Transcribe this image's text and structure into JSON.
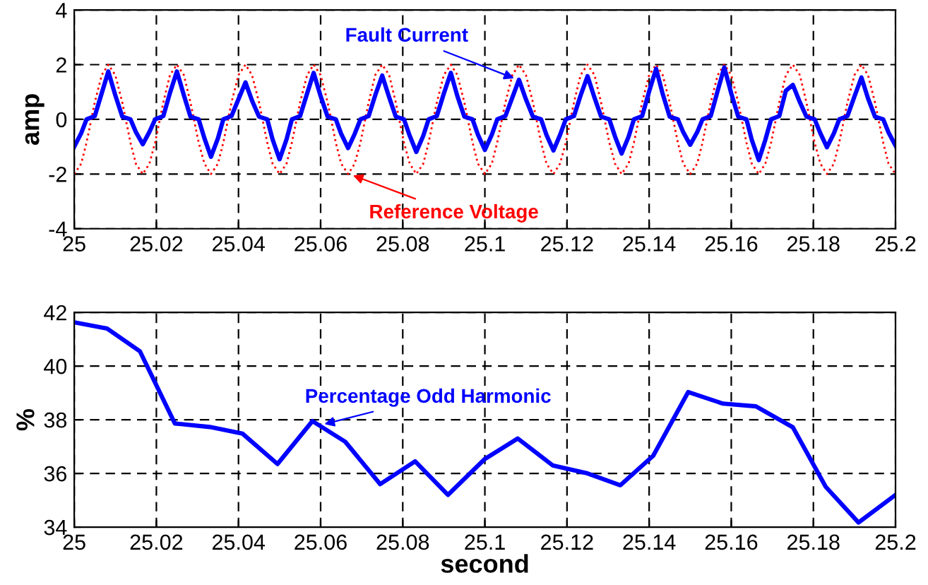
{
  "chart_data": [
    {
      "type": "line",
      "ylabel": "amp",
      "xlim": [
        25,
        25.2
      ],
      "ylim": [
        -4,
        4
      ],
      "xticks": [
        25,
        25.02,
        25.04,
        25.06,
        25.08,
        25.1,
        25.12,
        25.14,
        25.16,
        25.18,
        25.2
      ],
      "yticks": [
        -4,
        -2,
        0,
        2,
        4
      ],
      "grid": true,
      "line_style": "solid",
      "x": [
        25.0,
        25.0017,
        25.003,
        25.005,
        25.0067,
        25.0083,
        25.01,
        25.0117,
        25.0137,
        25.015,
        25.0167,
        25.0183,
        25.0197,
        25.0217,
        25.0233,
        25.025,
        25.0267,
        25.0283,
        25.0303,
        25.0317,
        25.0333,
        25.035,
        25.0363,
        25.0383,
        25.04,
        25.0417,
        25.0433,
        25.045,
        25.047,
        25.0483,
        25.05,
        25.0517,
        25.053,
        25.055,
        25.0567,
        25.0583,
        25.06,
        25.0617,
        25.0637,
        25.065,
        25.0667,
        25.0683,
        25.0697,
        25.0717,
        25.0733,
        25.075,
        25.0767,
        25.0783,
        25.0803,
        25.0817,
        25.0833,
        25.085,
        25.0863,
        25.0883,
        25.09,
        25.0917,
        25.0933,
        25.095,
        25.097,
        25.0983,
        25.1,
        25.1017,
        25.103,
        25.105,
        25.1067,
        25.1083,
        25.11,
        25.1117,
        25.1137,
        25.115,
        25.1167,
        25.1183,
        25.1197,
        25.1217,
        25.1233,
        25.125,
        25.1267,
        25.1283,
        25.1303,
        25.1317,
        25.1333,
        25.135,
        25.1363,
        25.1383,
        25.14,
        25.1417,
        25.1433,
        25.145,
        25.147,
        25.1483,
        25.15,
        25.1517,
        25.153,
        25.155,
        25.1567,
        25.1583,
        25.16,
        25.1617,
        25.1637,
        25.165,
        25.1667,
        25.1683,
        25.1697,
        25.1717,
        25.1733,
        25.175,
        25.1767,
        25.1783,
        25.1803,
        25.1817,
        25.1833,
        25.185,
        25.1863,
        25.1883,
        25.19,
        25.1917,
        25.1933,
        25.195,
        25.197,
        25.1983,
        25.2
      ],
      "series": [
        {
          "color": "#ff0000",
          "line_style": "dotted",
          "values": [
            -2,
            -1.62,
            -0.85,
            0.62,
            1.62,
            2,
            1.62,
            0.62,
            -0.85,
            -1.62,
            -2,
            -1.62,
            -0.85,
            0.62,
            1.62,
            2,
            1.62,
            0.62,
            -0.85,
            -1.62,
            -2,
            -1.62,
            -0.85,
            0.62,
            1.62,
            2,
            1.62,
            0.62,
            -0.85,
            -1.62,
            -2,
            -1.62,
            -0.85,
            0.62,
            1.62,
            2,
            1.62,
            0.62,
            -0.85,
            -1.62,
            -2,
            -1.62,
            -0.85,
            0.62,
            1.62,
            2,
            1.62,
            0.62,
            -0.85,
            -1.62,
            -2,
            -1.62,
            -0.85,
            0.62,
            1.62,
            2,
            1.62,
            0.62,
            -0.85,
            -1.62,
            -2,
            -1.62,
            -0.85,
            0.62,
            1.62,
            2,
            1.62,
            0.62,
            -0.85,
            -1.62,
            -2,
            -1.62,
            -0.85,
            0.62,
            1.62,
            2,
            1.62,
            0.62,
            -0.85,
            -1.62,
            -2,
            -1.62,
            -0.85,
            0.62,
            1.62,
            2,
            1.62,
            0.62,
            -0.85,
            -1.62,
            -2,
            -1.62,
            -0.85,
            0.62,
            1.62,
            2,
            1.62,
            0.62,
            -0.85,
            -1.62,
            -2,
            -1.62,
            -0.85,
            0.62,
            1.62,
            2,
            1.62,
            0.62,
            -0.85,
            -1.62,
            -2,
            -1.62,
            -0.85,
            0.62,
            1.62,
            2,
            1.62,
            0.62,
            -0.85,
            -1.62,
            -2
          ]
        },
        {
          "color": "#0000ff",
          "values": [
            -1.0,
            -0.5,
            0,
            0.12,
            0.96,
            1.75,
            0.88,
            0.1,
            0,
            -0.46,
            -0.91,
            -0.46,
            0,
            0.12,
            0.96,
            1.75,
            0.88,
            0.1,
            0,
            -0.69,
            -1.37,
            -0.69,
            0,
            0.12,
            0.74,
            1.35,
            0.68,
            0.1,
            0,
            -0.73,
            -1.46,
            -0.73,
            0,
            0.12,
            0.94,
            1.7,
            0.85,
            0.1,
            0,
            -0.53,
            -1.05,
            -0.53,
            0,
            0.12,
            0.88,
            1.6,
            0.8,
            0.1,
            0,
            -0.6,
            -1.19,
            -0.6,
            0,
            0.12,
            0.94,
            1.7,
            0.85,
            0.1,
            0,
            -0.56,
            -1.12,
            -0.56,
            0,
            0.12,
            0.8,
            1.45,
            0.73,
            0.1,
            0,
            -0.57,
            -1.14,
            -0.57,
            0,
            0.12,
            0.87,
            1.58,
            0.79,
            0.1,
            0,
            -0.63,
            -1.25,
            -0.63,
            0,
            0.12,
            1.02,
            1.85,
            0.93,
            0.1,
            0,
            -0.47,
            -0.93,
            -0.47,
            0,
            0.12,
            1.05,
            1.9,
            0.95,
            0.1,
            0,
            -0.75,
            -1.49,
            -0.75,
            0,
            0.12,
            1.05,
            1.26,
            0.63,
            0.1,
            0,
            -0.51,
            -1.02,
            -0.51,
            0,
            0.12,
            0.84,
            1.53,
            0.77,
            0.1,
            0,
            -0.48,
            -0.96
          ]
        }
      ],
      "annotations": [
        {
          "text": "Fault Current",
          "x": 25.108,
          "y": 1.45
        },
        {
          "text": "Reference Voltage",
          "x": 25.067,
          "y": -2
        }
      ]
    },
    {
      "type": "line",
      "xlabel": "second",
      "ylabel": "%",
      "xlim": [
        25,
        25.2
      ],
      "ylim": [
        34,
        42
      ],
      "xticks": [
        25,
        25.02,
        25.04,
        25.06,
        25.08,
        25.1,
        25.12,
        25.14,
        25.16,
        25.18,
        25.2
      ],
      "yticks": [
        34,
        36,
        38,
        40,
        42
      ],
      "grid": true,
      "line_style": "solid",
      "x": [
        25.0,
        25.008,
        25.016,
        25.0245,
        25.033,
        25.041,
        25.0495,
        25.058,
        25.066,
        25.0745,
        25.083,
        25.091,
        25.1,
        25.108,
        25.1165,
        25.125,
        25.133,
        25.141,
        25.1495,
        25.158,
        25.166,
        25.175,
        25.183,
        25.191,
        25.2
      ],
      "series": [
        {
          "color": "#0000ff",
          "values": [
            41.63,
            41.4,
            40.55,
            37.86,
            37.73,
            37.48,
            36.35,
            37.95,
            37.18,
            35.6,
            36.45,
            35.2,
            36.54,
            37.3,
            36.3,
            36.0,
            35.56,
            36.66,
            39.03,
            38.6,
            38.5,
            37.72,
            35.5,
            34.17,
            35.2
          ]
        }
      ],
      "annotations": [
        {
          "text": "Percentage Odd Harmonic",
          "x": 25.06,
          "y": 37.8
        }
      ]
    }
  ]
}
